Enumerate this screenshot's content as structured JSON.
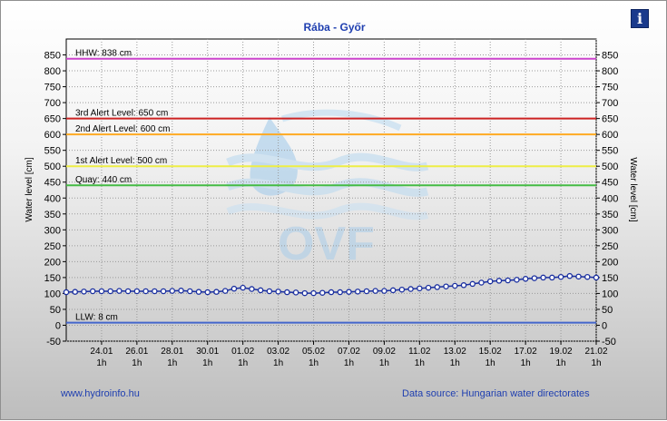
{
  "chart_data": {
    "type": "line",
    "title": "Rába - Győr",
    "ylabel": "Water level [cm]",
    "y2label": "Water level [cm]",
    "ylim": [
      -50,
      900
    ],
    "yticks": [
      -50,
      0,
      50,
      100,
      150,
      200,
      250,
      300,
      350,
      400,
      450,
      500,
      550,
      600,
      650,
      700,
      750,
      800,
      850
    ],
    "x_start": "22.01 1h",
    "x_end": "21.02 1h",
    "x_ticks": [
      {
        "date": "24.01",
        "hour": "1h"
      },
      {
        "date": "26.01",
        "hour": "1h"
      },
      {
        "date": "28.01",
        "hour": "1h"
      },
      {
        "date": "30.01",
        "hour": "1h"
      },
      {
        "date": "01.02",
        "hour": "1h"
      },
      {
        "date": "03.02",
        "hour": "1h"
      },
      {
        "date": "05.02",
        "hour": "1h"
      },
      {
        "date": "07.02",
        "hour": "1h"
      },
      {
        "date": "09.02",
        "hour": "1h"
      },
      {
        "date": "11.02",
        "hour": "1h"
      },
      {
        "date": "13.02",
        "hour": "1h"
      },
      {
        "date": "15.02",
        "hour": "1h"
      },
      {
        "date": "17.02",
        "hour": "1h"
      },
      {
        "date": "19.02",
        "hour": "1h"
      },
      {
        "date": "21.02",
        "hour": "1h"
      }
    ],
    "grid": true,
    "reference_lines": [
      {
        "label": "HHW: 838 cm",
        "value": 838,
        "color": "#cc44cc"
      },
      {
        "label": "3rd Alert Level: 650 cm",
        "value": 650,
        "color": "#cc2222"
      },
      {
        "label": "2nd Alert Level: 600 cm",
        "value": 600,
        "color": "#ffaa22"
      },
      {
        "label": "1st Alert Level: 500 cm",
        "value": 500,
        "color": "#eeee44"
      },
      {
        "label": "Quay: 440 cm",
        "value": 440,
        "color": "#44bb44"
      },
      {
        "label": "LLW: 8 cm",
        "value": 8,
        "color": "#4466cc"
      }
    ],
    "series": [
      {
        "color": "#1a2fa0",
        "x": [
          "22.01 1h",
          "22.01 13h",
          "23.01 1h",
          "23.01 13h",
          "24.01 1h",
          "24.01 13h",
          "25.01 1h",
          "25.01 13h",
          "26.01 1h",
          "26.01 13h",
          "27.01 1h",
          "27.01 13h",
          "28.01 1h",
          "28.01 13h",
          "29.01 1h",
          "29.01 13h",
          "30.01 1h",
          "30.01 13h",
          "31.01 1h",
          "31.01 13h",
          "01.02 1h",
          "01.02 13h",
          "02.02 1h",
          "02.02 13h",
          "03.02 1h",
          "03.02 13h",
          "04.02 1h",
          "04.02 13h",
          "05.02 1h",
          "05.02 13h",
          "06.02 1h",
          "06.02 13h",
          "07.02 1h",
          "07.02 13h",
          "08.02 1h",
          "08.02 13h",
          "09.02 1h",
          "09.02 13h",
          "10.02 1h",
          "10.02 13h",
          "11.02 1h",
          "11.02 13h",
          "12.02 1h",
          "12.02 13h",
          "13.02 1h",
          "13.02 13h",
          "14.02 1h",
          "14.02 13h",
          "15.02 1h",
          "15.02 13h",
          "16.02 1h",
          "16.02 13h",
          "17.02 1h",
          "17.02 13h",
          "18.02 1h",
          "18.02 13h",
          "19.02 1h",
          "19.02 13h",
          "20.02 1h",
          "20.02 13h",
          "21.02 1h"
        ],
        "values": [
          104,
          105,
          106,
          107,
          107,
          107,
          108,
          107,
          107,
          107,
          107,
          107,
          108,
          109,
          107,
          105,
          104,
          105,
          108,
          115,
          118,
          114,
          110,
          107,
          106,
          104,
          103,
          101,
          101,
          102,
          104,
          104,
          105,
          106,
          107,
          108,
          108,
          110,
          112,
          114,
          116,
          118,
          120,
          122,
          124,
          126,
          130,
          134,
          138,
          140,
          141,
          143,
          146,
          148,
          150,
          150,
          152,
          155,
          153,
          152,
          150
        ]
      }
    ]
  },
  "watermark": {
    "text": "OVF"
  },
  "footer": {
    "website": "www.hydroinfo.hu",
    "data_source": "Data source: Hungarian water directorates"
  },
  "info_button": {
    "label": "i"
  }
}
